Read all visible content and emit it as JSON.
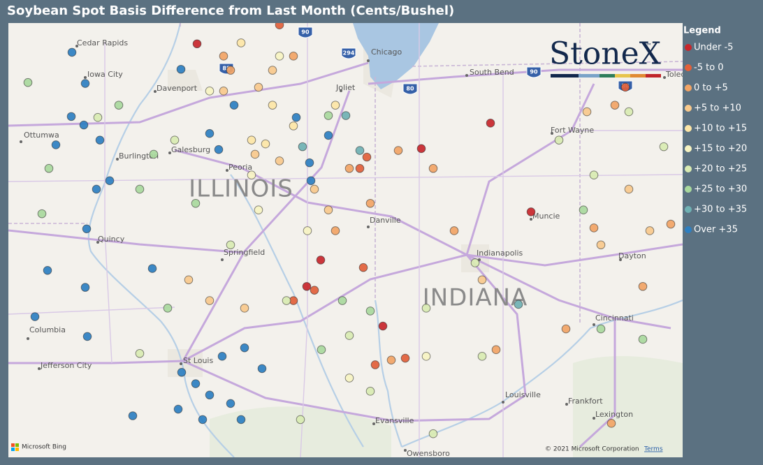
{
  "header": {
    "title": "Soybean Spot Basis Difference from Last Month (Cents/Bushel)"
  },
  "chart_data": {
    "type": "map",
    "legend_title": "Legend",
    "lonlim": [
      -92.7,
      -83.05
    ],
    "latlim": [
      42.2,
      37.6
    ],
    "series": [
      {
        "name": "Under -5",
        "color": "#c8262b",
        "lon": [
          -90.0,
          -85.8,
          -86.79,
          -85.22,
          -88.23,
          -87.34,
          -88.43
        ],
        "lat": [
          41.98,
          41.14,
          40.87,
          40.2,
          39.69,
          38.99,
          39.41
        ]
      },
      {
        "name": "-5 to 0",
        "color": "#e2603a",
        "lon": [
          -87.57,
          -88.82,
          -87.67,
          -88.32,
          -88.62,
          -87.45,
          -87.02,
          -87.62,
          -83.87
        ],
        "lat": [
          40.78,
          42.18,
          40.66,
          39.37,
          39.26,
          38.58,
          38.65,
          39.61,
          41.52
        ]
      },
      {
        "name": "0 to +5",
        "color": "#f2a465",
        "lon": [
          -89.62,
          -88.62,
          -87.82,
          -87.12,
          -86.62,
          -87.52,
          -88.02,
          -86.32,
          -84.32,
          -84.02,
          -83.62,
          -83.22,
          -85.72,
          -87.22,
          -84.07,
          -84.72,
          -89.52
        ],
        "lat": [
          41.85,
          41.85,
          40.66,
          40.85,
          40.66,
          40.29,
          40.0,
          40.0,
          40.03,
          41.33,
          39.41,
          40.07,
          38.74,
          38.63,
          37.96,
          38.96,
          41.7
        ]
      },
      {
        "name": "+5 to +10",
        "color": "#f8c98c",
        "lon": [
          -89.62,
          -89.17,
          -88.82,
          -88.32,
          -90.12,
          -89.82,
          -88.92,
          -88.12,
          -89.32,
          -84.42,
          -83.82,
          -83.52,
          -84.22,
          -85.92,
          -89.12
        ],
        "lat": [
          41.48,
          40.81,
          40.74,
          40.44,
          39.48,
          39.26,
          41.7,
          40.22,
          39.18,
          41.26,
          40.44,
          40.0,
          39.85,
          39.48,
          41.52
        ]
      },
      {
        "name": "+10 to +15",
        "color": "#fde6a6",
        "lon": [
          -89.37,
          -89.02,
          -88.62,
          -89.22,
          -88.92,
          -88.02
        ],
        "lat": [
          41.99,
          40.92,
          41.11,
          40.96,
          41.33,
          41.33
        ]
      },
      {
        "name": "+15 to +20",
        "color": "#f7f4c2",
        "lon": [
          -89.82,
          -89.22,
          -89.12,
          -88.42,
          -88.82,
          -87.82,
          -86.72
        ],
        "lat": [
          41.48,
          40.59,
          40.22,
          40.0,
          41.85,
          38.44,
          38.67
        ]
      },
      {
        "name": "+20 to +25",
        "color": "#d9ebb2",
        "lon": [
          -91.42,
          -90.32,
          -89.52,
          -88.72,
          -87.82,
          -87.52,
          -86.72,
          -85.92,
          -84.82,
          -84.32,
          -83.82,
          -83.32,
          -86.02,
          -86.62,
          -90.82,
          -88.52
        ],
        "lat": [
          41.2,
          40.96,
          39.85,
          39.26,
          38.89,
          38.3,
          39.18,
          38.67,
          40.96,
          40.59,
          41.26,
          40.89,
          39.66,
          37.85,
          38.7,
          38.0
        ]
      },
      {
        "name": "+25 to +30",
        "color": "#a9d99d",
        "lon": [
          -92.42,
          -91.12,
          -92.12,
          -90.62,
          -90.42,
          -90.02,
          -88.22,
          -87.92,
          -87.52,
          -84.47,
          -83.62,
          -84.22,
          -88.12,
          -92.22,
          -90.82
        ],
        "lat": [
          41.57,
          41.33,
          40.66,
          40.81,
          39.18,
          40.29,
          38.74,
          39.26,
          39.15,
          40.22,
          38.85,
          38.96,
          41.22,
          40.18,
          40.44
        ]
      },
      {
        "name": "+30 to +35",
        "color": "#6fb1b3",
        "lon": [
          -87.67,
          -88.49,
          -87.87,
          -85.4
        ],
        "lat": [
          40.85,
          40.89,
          41.22,
          39.22
        ]
      },
      {
        "name": "Over +35",
        "color": "#2d7fc1",
        "lon": [
          -91.79,
          -91.6,
          -91.8,
          -91.62,
          -91.39,
          -92.02,
          -91.44,
          -91.25,
          -91.58,
          -92.14,
          -91.6,
          -91.57,
          -90.64,
          -90.23,
          -89.47,
          -89.82,
          -89.69,
          -88.39,
          -88.58,
          -88.12,
          -88.37,
          -90.22,
          -90.02,
          -89.82,
          -89.52,
          -89.32,
          -89.07,
          -90.27,
          -89.92,
          -89.37,
          -89.64,
          -90.92,
          -92.32
        ],
        "lat": [
          41.89,
          41.56,
          41.21,
          41.12,
          40.96,
          40.91,
          40.44,
          40.53,
          40.02,
          39.58,
          39.4,
          38.88,
          39.6,
          41.71,
          41.33,
          41.03,
          40.86,
          40.72,
          41.2,
          41.01,
          40.53,
          38.5,
          38.38,
          38.26,
          38.17,
          38.76,
          38.54,
          38.11,
          38.0,
          38.0,
          38.67,
          38.04,
          39.09
        ]
      }
    ]
  },
  "places": [
    "Cedar Rapids",
    "Iowa City",
    "Davenport",
    "Ottumwa",
    "Burlington",
    "Galesburg",
    "Peoria",
    "Quincy",
    "Springfield",
    "Columbia",
    "Jefferson City",
    "St Louis",
    "Chicago",
    "South Bend",
    "Joliet",
    "Danville",
    "Fort Wayne",
    "Indianapolis",
    "Muncie",
    "Dayton",
    "Cincinnati",
    "Louisville",
    "Frankfort",
    "Lexington",
    "Evansville",
    "Owensboro",
    "Toledo"
  ],
  "states": [
    "ILLINOIS",
    "INDIANA"
  ],
  "shields": [
    "90",
    "294",
    "88",
    "80",
    "90",
    "80"
  ],
  "logo": {
    "name": "StoneX",
    "mark": "™"
  },
  "footer": {
    "credit": "Microsoft Bing",
    "copyright": "© 2021 Microsoft Corporation",
    "terms": "Terms"
  }
}
